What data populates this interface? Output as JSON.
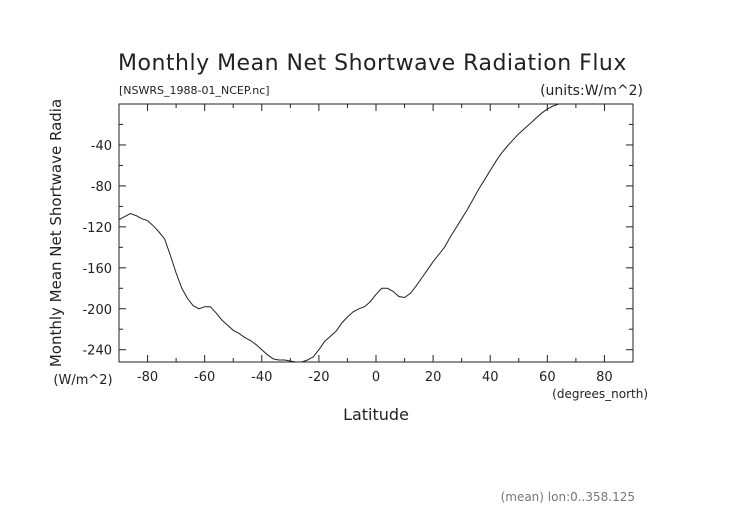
{
  "chart_data": {
    "type": "line",
    "title": "Monthly Mean Net Shortwave Radiation Flux",
    "subtitle_left": "[NSWRS_1988-01_NCEP.nc]",
    "subtitle_right": "(units:W/m^2)",
    "xlabel": "Latitude",
    "x_unit_label": "(degrees_north)",
    "ylabel": "Monthly Mean Net Shortwave Radia",
    "y_unit_label": "(W/m^2)",
    "footnote": "(mean) lon:0..358.125",
    "xlim": [
      -90,
      90
    ],
    "ylim": [
      -252,
      0
    ],
    "x_ticks": [
      -80,
      -60,
      -40,
      -20,
      0,
      20,
      40,
      60,
      80
    ],
    "y_ticks": [
      -40,
      -80,
      -120,
      -160,
      -200,
      -240
    ],
    "grid": false,
    "series": [
      {
        "x": [
          -90,
          -88,
          -86,
          -84,
          -82,
          -80,
          -78,
          -76,
          -74,
          -72,
          -70,
          -68,
          -66,
          -64,
          -62,
          -60,
          -58,
          -56,
          -54,
          -52,
          -50,
          -48,
          -46,
          -44,
          -42,
          -40,
          -38,
          -36,
          -34,
          -32,
          -30,
          -28,
          -26,
          -24,
          -22,
          -20,
          -18,
          -16,
          -14,
          -12,
          -10,
          -8,
          -6,
          -4,
          -2,
          0,
          2,
          4,
          6,
          8,
          10,
          12,
          14,
          16,
          18,
          20,
          22,
          24,
          26,
          28,
          30,
          32,
          34,
          36,
          38,
          40,
          42,
          44,
          46,
          48,
          50,
          52,
          54,
          56,
          58,
          60,
          62,
          64,
          66,
          68,
          70,
          72,
          74,
          76,
          78,
          80,
          82,
          84,
          86,
          88,
          90
        ],
        "values": [
          -113,
          -110,
          -107,
          -109,
          -112,
          -114,
          -119,
          -125,
          -132,
          -148,
          -165,
          -180,
          -190,
          -197,
          -200,
          -198,
          -198,
          -204,
          -211,
          -216,
          -221,
          -224,
          -228,
          -231,
          -235,
          -240,
          -245,
          -249,
          -250,
          -250,
          -251,
          -252,
          -252,
          -250,
          -247,
          -240,
          -232,
          -227,
          -222,
          -214,
          -208,
          -203,
          -200,
          -198,
          -193,
          -186,
          -180,
          -180,
          -183,
          -188,
          -189,
          -185,
          -178,
          -170,
          -162,
          -154,
          -147,
          -140,
          -130,
          -121,
          -112,
          -103,
          -93,
          -83,
          -74,
          -65,
          -56,
          -48,
          -41,
          -35,
          -29,
          -24,
          -19,
          -14,
          -9,
          -5,
          -2,
          0,
          0,
          0,
          0,
          0,
          0,
          0,
          0,
          0,
          0,
          0,
          0,
          0,
          0
        ]
      }
    ]
  }
}
